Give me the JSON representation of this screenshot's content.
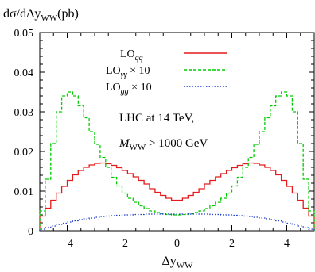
{
  "chart_data": {
    "type": "line",
    "style": "step",
    "ylabel": "dσ/dΔy_WW(pb)",
    "ylabel_parts": {
      "main": "dσ/dΔy",
      "sub": "WW",
      "unit": "(pb)"
    },
    "xlabel": "Δy_WW",
    "xlabel_parts": {
      "main": "Δy",
      "sub": "WW"
    },
    "xlim": [
      -5,
      5
    ],
    "ylim": [
      0,
      0.05
    ],
    "xticks": [
      -4,
      -2,
      0,
      2,
      4
    ],
    "xtick_labels": [
      "−4",
      "−2",
      "0",
      "2",
      "4"
    ],
    "yticks": [
      0,
      0.01,
      0.02,
      0.03,
      0.04,
      0.05
    ],
    "ytick_labels": [
      "0",
      "0.01",
      "0.02",
      "0.03",
      "0.04",
      "0.05"
    ],
    "grid": false,
    "legend_position": "top-right",
    "annotations": [
      {
        "parts": {
          "main": "LHC at 14 TeV,"
        }
      },
      {
        "parts": {
          "main": "M",
          "sub": "WW",
          "rest": " > 1000 GeV"
        }
      }
    ],
    "bin_width": 0.2,
    "bin_centers": [
      -4.9,
      -4.7,
      -4.5,
      -4.3,
      -4.1,
      -3.9,
      -3.7,
      -3.5,
      -3.3,
      -3.1,
      -2.9,
      -2.7,
      -2.5,
      -2.3,
      -2.1,
      -1.9,
      -1.7,
      -1.5,
      -1.3,
      -1.1,
      -0.9,
      -0.7,
      -0.5,
      -0.3,
      -0.1,
      0.1,
      0.3,
      0.5,
      0.7,
      0.9,
      1.1,
      1.3,
      1.5,
      1.7,
      1.9,
      2.1,
      2.3,
      2.5,
      2.7,
      2.9,
      3.1,
      3.3,
      3.5,
      3.7,
      3.9,
      4.1,
      4.3,
      4.5,
      4.7,
      4.9
    ],
    "series": [
      {
        "name": "LO_qq̄",
        "legend_parts": {
          "main": "LO",
          "sub": "qq̄"
        },
        "color": "#e41a1c",
        "dash": "solid",
        "values": [
          0.0037,
          0.0057,
          0.0077,
          0.0095,
          0.0112,
          0.0127,
          0.0141,
          0.0152,
          0.016,
          0.0166,
          0.017,
          0.0171,
          0.0169,
          0.0165,
          0.0159,
          0.0152,
          0.0144,
          0.0136,
          0.0127,
          0.0118,
          0.0106,
          0.0097,
          0.0089,
          0.0082,
          0.0077,
          0.0077,
          0.0082,
          0.0089,
          0.0097,
          0.0106,
          0.0118,
          0.0127,
          0.0136,
          0.0144,
          0.0152,
          0.0159,
          0.0165,
          0.0169,
          0.0171,
          0.017,
          0.0166,
          0.016,
          0.0152,
          0.0141,
          0.0127,
          0.0112,
          0.0095,
          0.0077,
          0.0057,
          0.0037
        ]
      },
      {
        "name": "LO_γγ × 10",
        "legend_parts": {
          "main": "LO",
          "sub": "γγ",
          "rest": " × 10"
        },
        "color": "#00cc00",
        "dash": "4,2",
        "values": [
          0.005,
          0.013,
          0.022,
          0.03,
          0.034,
          0.035,
          0.034,
          0.0315,
          0.0285,
          0.025,
          0.0218,
          0.0185,
          0.016,
          0.0135,
          0.0113,
          0.0095,
          0.0082,
          0.0072,
          0.0063,
          0.0056,
          0.005,
          0.0046,
          0.0043,
          0.0041,
          0.004,
          0.004,
          0.0041,
          0.0043,
          0.0046,
          0.005,
          0.0056,
          0.0063,
          0.0072,
          0.0082,
          0.0095,
          0.0113,
          0.0135,
          0.016,
          0.0185,
          0.0218,
          0.025,
          0.0285,
          0.0315,
          0.034,
          0.035,
          0.034,
          0.03,
          0.022,
          0.013,
          0.005
        ]
      },
      {
        "name": "LO_gg × 10",
        "legend_parts": {
          "main": "LO",
          "sub": "gg",
          "rest": " × 10"
        },
        "color": "#1f3fd0",
        "dash": "1.5,2",
        "values": [
          0.0004,
          0.0008,
          0.0012,
          0.0016,
          0.0019,
          0.0022,
          0.0025,
          0.0028,
          0.003,
          0.0032,
          0.0034,
          0.0036,
          0.0037,
          0.0038,
          0.0039,
          0.004,
          0.004,
          0.0041,
          0.0041,
          0.0042,
          0.0042,
          0.0042,
          0.0042,
          0.0042,
          0.0042,
          0.0042,
          0.0042,
          0.0042,
          0.0042,
          0.0042,
          0.0042,
          0.0041,
          0.0041,
          0.004,
          0.004,
          0.0039,
          0.0038,
          0.0037,
          0.0036,
          0.0034,
          0.0032,
          0.003,
          0.0028,
          0.0025,
          0.0022,
          0.0019,
          0.0016,
          0.0012,
          0.0008,
          0.0004
        ]
      }
    ]
  }
}
